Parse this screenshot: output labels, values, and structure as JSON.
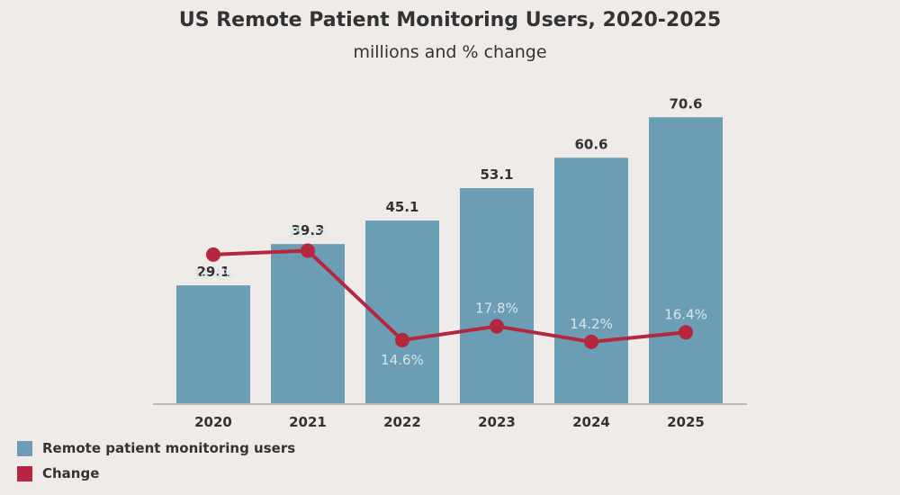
{
  "title": "US Remote Patient Monitoring Users, 2020-2025",
  "subtitle": "millions and % change",
  "colors": {
    "background": "#efebe9",
    "bar": "#6b9eb5",
    "line": "#b5273e",
    "pct_label": "#d6e5ec",
    "axis": "#bbbbbb",
    "text": "#333333"
  },
  "legend": [
    {
      "label": "Remote patient monitoring users",
      "color": "#6b9eb5"
    },
    {
      "label": "Change",
      "color": "#b5273e"
    }
  ],
  "chart_data": {
    "type": "bar",
    "categories": [
      "2020",
      "2021",
      "2022",
      "2023",
      "2024",
      "2025"
    ],
    "series": [
      {
        "name": "Remote patient monitoring users",
        "type": "bar",
        "values": [
          29.1,
          39.3,
          45.1,
          53.1,
          60.6,
          70.6
        ],
        "labels": [
          "29.1",
          "39.3",
          "45.1",
          "53.1",
          "60.6",
          "70.6"
        ]
      },
      {
        "name": "Change",
        "type": "line",
        "values": [
          34.4,
          35.3,
          14.6,
          17.8,
          14.2,
          16.4
        ],
        "labels": [
          "34.4%",
          "35.3%",
          "14.6%",
          "17.8%",
          "14.2%",
          "16.4%"
        ],
        "label_positions": [
          "below",
          "above",
          "below",
          "above",
          "above",
          "above"
        ]
      }
    ],
    "title": "US Remote Patient Monitoring Users, 2020-2025",
    "subtitle": "millions and % change",
    "ylim_bars": [
      0,
      80
    ],
    "ylim_line": [
      0,
      75
    ],
    "grid": false,
    "legend_position": "bottom-left"
  }
}
